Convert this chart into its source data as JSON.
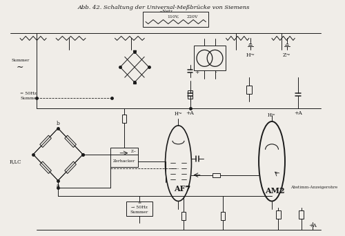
{
  "title": "Abb. 42. Schaltung der Universal-Meßbrücke von Siemens",
  "bg_color": "#f0ede8",
  "line_color": "#1a1a1a",
  "text_color": "#1a1a1a",
  "fig_width": 5.0,
  "fig_height": 3.42,
  "dpi": 100,
  "labels": {
    "AF7": "AF7",
    "AM2": "AM2",
    "Abstimm": "Abstimm-Anzeigerohre",
    "Summer1": "Summer",
    "freq1": "→ 50Hz",
    "eq1": "=",
    "Summer2": "Summer",
    "freq2": "= 50Hz",
    "RLC": "R,LC",
    "Zerhacker": "Zerhacker",
    "netz": "110V,   220V\n~Netz",
    "plusA1": "+A",
    "plusA2": "+A",
    "plusA3": "+A",
    "H1": "H~",
    "H2": "H~",
    "Ztilde": "Z~",
    "a_label": "a",
    "b_label": "b",
    "Summer_bot": "Summer",
    "plus": "+",
    "minus": "-"
  }
}
